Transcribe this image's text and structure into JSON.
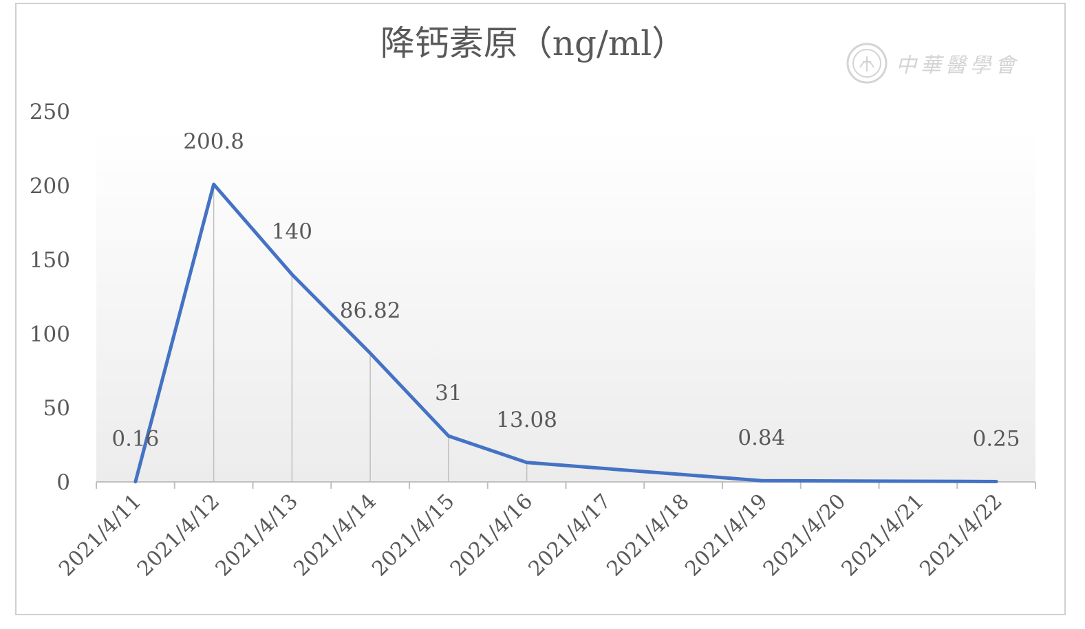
{
  "chart_data": {
    "type": "line",
    "title": "降钙素原（ng/ml）",
    "categories": [
      "2021/4/11",
      "2021/4/12",
      "2021/4/13",
      "2021/4/14",
      "2021/4/15",
      "2021/4/16",
      "2021/4/17",
      "2021/4/18",
      "2021/4/19",
      "2021/4/20",
      "2021/4/21",
      "2021/4/22"
    ],
    "series": [
      {
        "points": [
          {
            "x": "2021/4/11",
            "y": 0.16
          },
          {
            "x": "2021/4/12",
            "y": 200.8
          },
          {
            "x": "2021/4/13",
            "y": 140
          },
          {
            "x": "2021/4/14",
            "y": 86.82
          },
          {
            "x": "2021/4/15",
            "y": 31
          },
          {
            "x": "2021/4/16",
            "y": 13.08
          },
          {
            "x": "2021/4/19",
            "y": 0.84
          },
          {
            "x": "2021/4/22",
            "y": 0.25
          }
        ],
        "labels": [
          "0.16",
          "200.8",
          "140",
          "86.82",
          "31",
          "13.08",
          "0.84",
          "0.25"
        ]
      }
    ],
    "yticks": [
      "0",
      "50",
      "100",
      "150",
      "200",
      "250"
    ],
    "ylim": [
      0,
      250
    ],
    "grid": false,
    "drop_lines": true,
    "legend": "none",
    "colors": {
      "line": "#4472C4",
      "axis": "#bfbfbf",
      "text": "#595959",
      "drop": "#bfbfbf"
    }
  },
  "watermark": {
    "text": "中華醫學會",
    "icon": "society-seal-icon"
  }
}
